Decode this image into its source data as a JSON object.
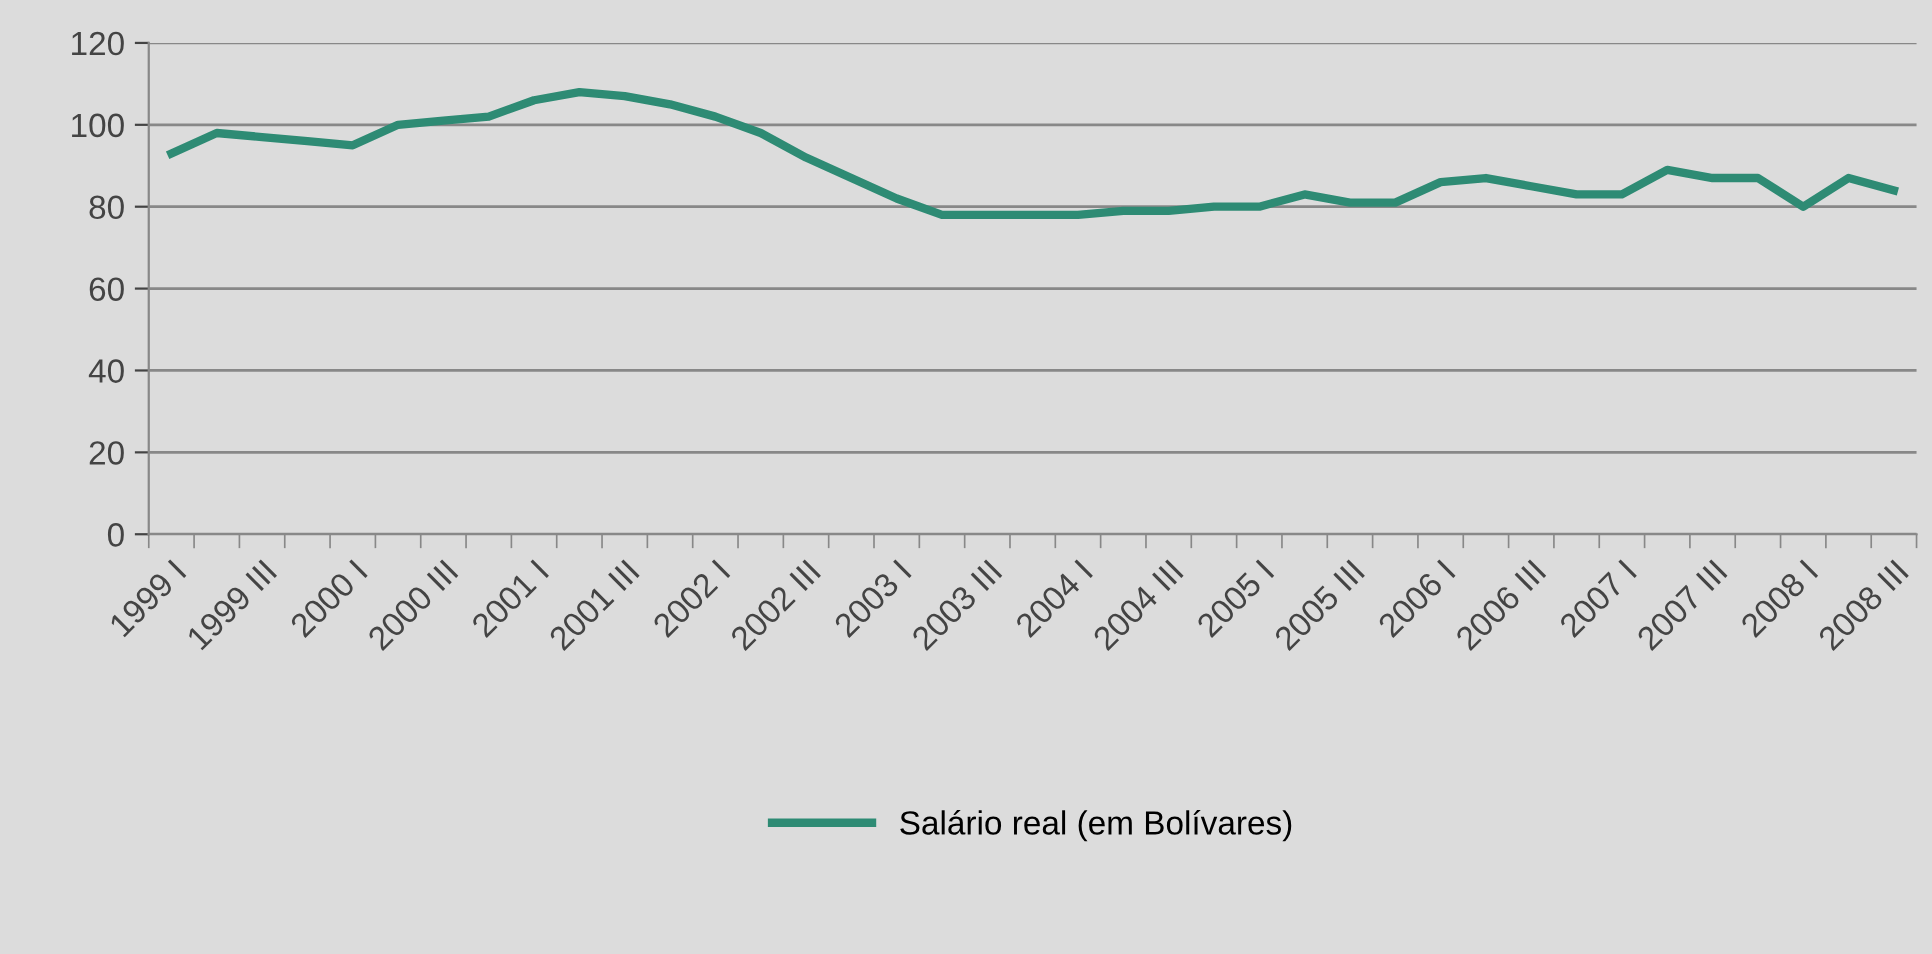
{
  "chart_data": {
    "type": "line",
    "categories": [
      "1999 I",
      null,
      "1999 III",
      null,
      "2000 I",
      null,
      "2000 III",
      null,
      "2001 I",
      null,
      "2001 III",
      null,
      "2002 I",
      null,
      "2002 III",
      null,
      "2003 I",
      null,
      "2003 III",
      null,
      "2004 I",
      null,
      "2004 III",
      null,
      "2005 I",
      null,
      "2005 III",
      null,
      "2006 I",
      null,
      "2006 III",
      null,
      "2007 I",
      null,
      "2007 III",
      null,
      "2008 I",
      null,
      "2008 III"
    ],
    "series": [
      {
        "name": "Salário real (em Bolívares)",
        "color": "#2e8b74",
        "values": [
          93,
          98,
          97,
          96,
          95,
          100,
          101,
          102,
          106,
          108,
          107,
          105,
          102,
          98,
          92,
          87,
          82,
          78,
          78,
          78,
          78,
          79,
          79,
          80,
          80,
          83,
          81,
          81,
          86,
          87,
          85,
          83,
          83,
          89,
          87,
          87,
          80,
          87,
          84
        ]
      }
    ],
    "ylim": [
      0,
      120
    ],
    "yticks": [
      0,
      20,
      40,
      60,
      80,
      100,
      120
    ],
    "grid": "y",
    "legend": "bottom"
  }
}
